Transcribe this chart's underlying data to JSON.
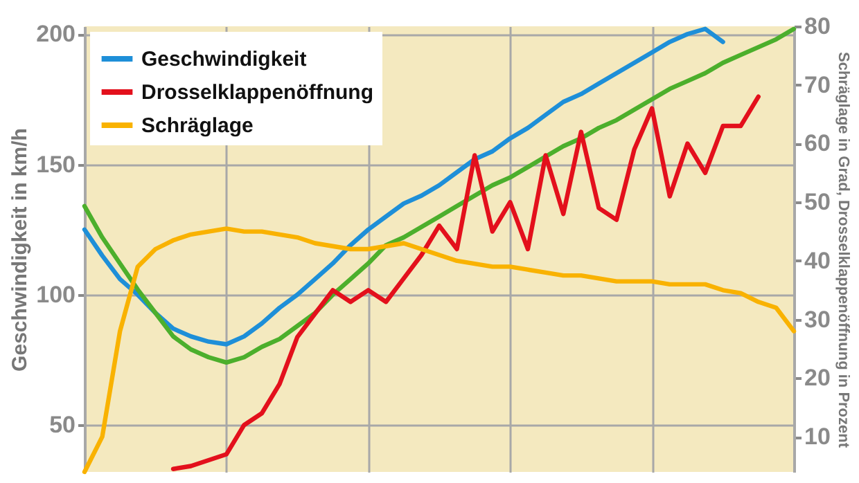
{
  "chart_data": {
    "type": "line",
    "ylabel": "Geschwindigkeit in km/h",
    "y2label": "Schräglage in Grad, Drosselklappenöffnung in Prozent",
    "categories": [
      null,
      null,
      null,
      null,
      null,
      null,
      null,
      null,
      null,
      null,
      null,
      null,
      null,
      null,
      null,
      null,
      null,
      null,
      null,
      null,
      null,
      null,
      null,
      null,
      null,
      null,
      null,
      null,
      null,
      null,
      null,
      null,
      null,
      null,
      null,
      null,
      null,
      null,
      null,
      null,
      null
    ],
    "ylim": [
      32,
      203
    ],
    "yticks": [
      50,
      100,
      150,
      200
    ],
    "y2lim": [
      4,
      80
    ],
    "y2ticks": [
      10,
      20,
      30,
      40,
      50,
      60,
      70,
      80
    ],
    "grid": true,
    "legend": "top left",
    "tick_labels": "y",
    "line_style": "solid",
    "series": [
      {
        "name": "Geschwindigkeit",
        "color": "#1e8fd8",
        "values": [
          125,
          115,
          106,
          100,
          93,
          87,
          84,
          82,
          81,
          84,
          89,
          95,
          100,
          106,
          112,
          119,
          125,
          130,
          135,
          138,
          142,
          147,
          152,
          155,
          160,
          164,
          169,
          174,
          177,
          181,
          185,
          189,
          193,
          197,
          200,
          202,
          197,
          null,
          null,
          null,
          null
        ]
      },
      {
        "color": "#4caf2c",
        "values": [
          134,
          122,
          112,
          102,
          93,
          84,
          79,
          76,
          74,
          76,
          80,
          83,
          88,
          93,
          100,
          106,
          112,
          119,
          122,
          126,
          130,
          134,
          138,
          142,
          145,
          149,
          153,
          157,
          160,
          164,
          167,
          171,
          175,
          179,
          182,
          185,
          189,
          192,
          195,
          198,
          202
        ]
      },
      {
        "name": "Drosselklappenöffnung",
        "color": "#e3101c",
        "axis": "y2",
        "values": [
          null,
          null,
          null,
          null,
          null,
          4.5,
          5,
          6,
          7,
          12,
          14,
          19,
          27,
          31,
          35,
          33,
          35,
          33,
          37,
          41,
          46,
          42,
          58,
          45,
          50,
          42,
          58,
          48,
          62,
          49,
          47,
          59,
          66,
          51,
          60,
          55,
          63,
          63,
          68,
          null,
          null
        ]
      },
      {
        "name": "Schräglage",
        "color": "#f9b200",
        "axis": "y2",
        "values": [
          4,
          10,
          28,
          39,
          42,
          43.5,
          44.5,
          45,
          45.5,
          45,
          45,
          44.5,
          44,
          43,
          42.5,
          42,
          42,
          42.5,
          43,
          42,
          41,
          40,
          39.5,
          39,
          39,
          38.5,
          38,
          37.5,
          37.5,
          37,
          36.5,
          36.5,
          36.5,
          36,
          36,
          36,
          35,
          34.5,
          33,
          32,
          28
        ]
      }
    ]
  }
}
